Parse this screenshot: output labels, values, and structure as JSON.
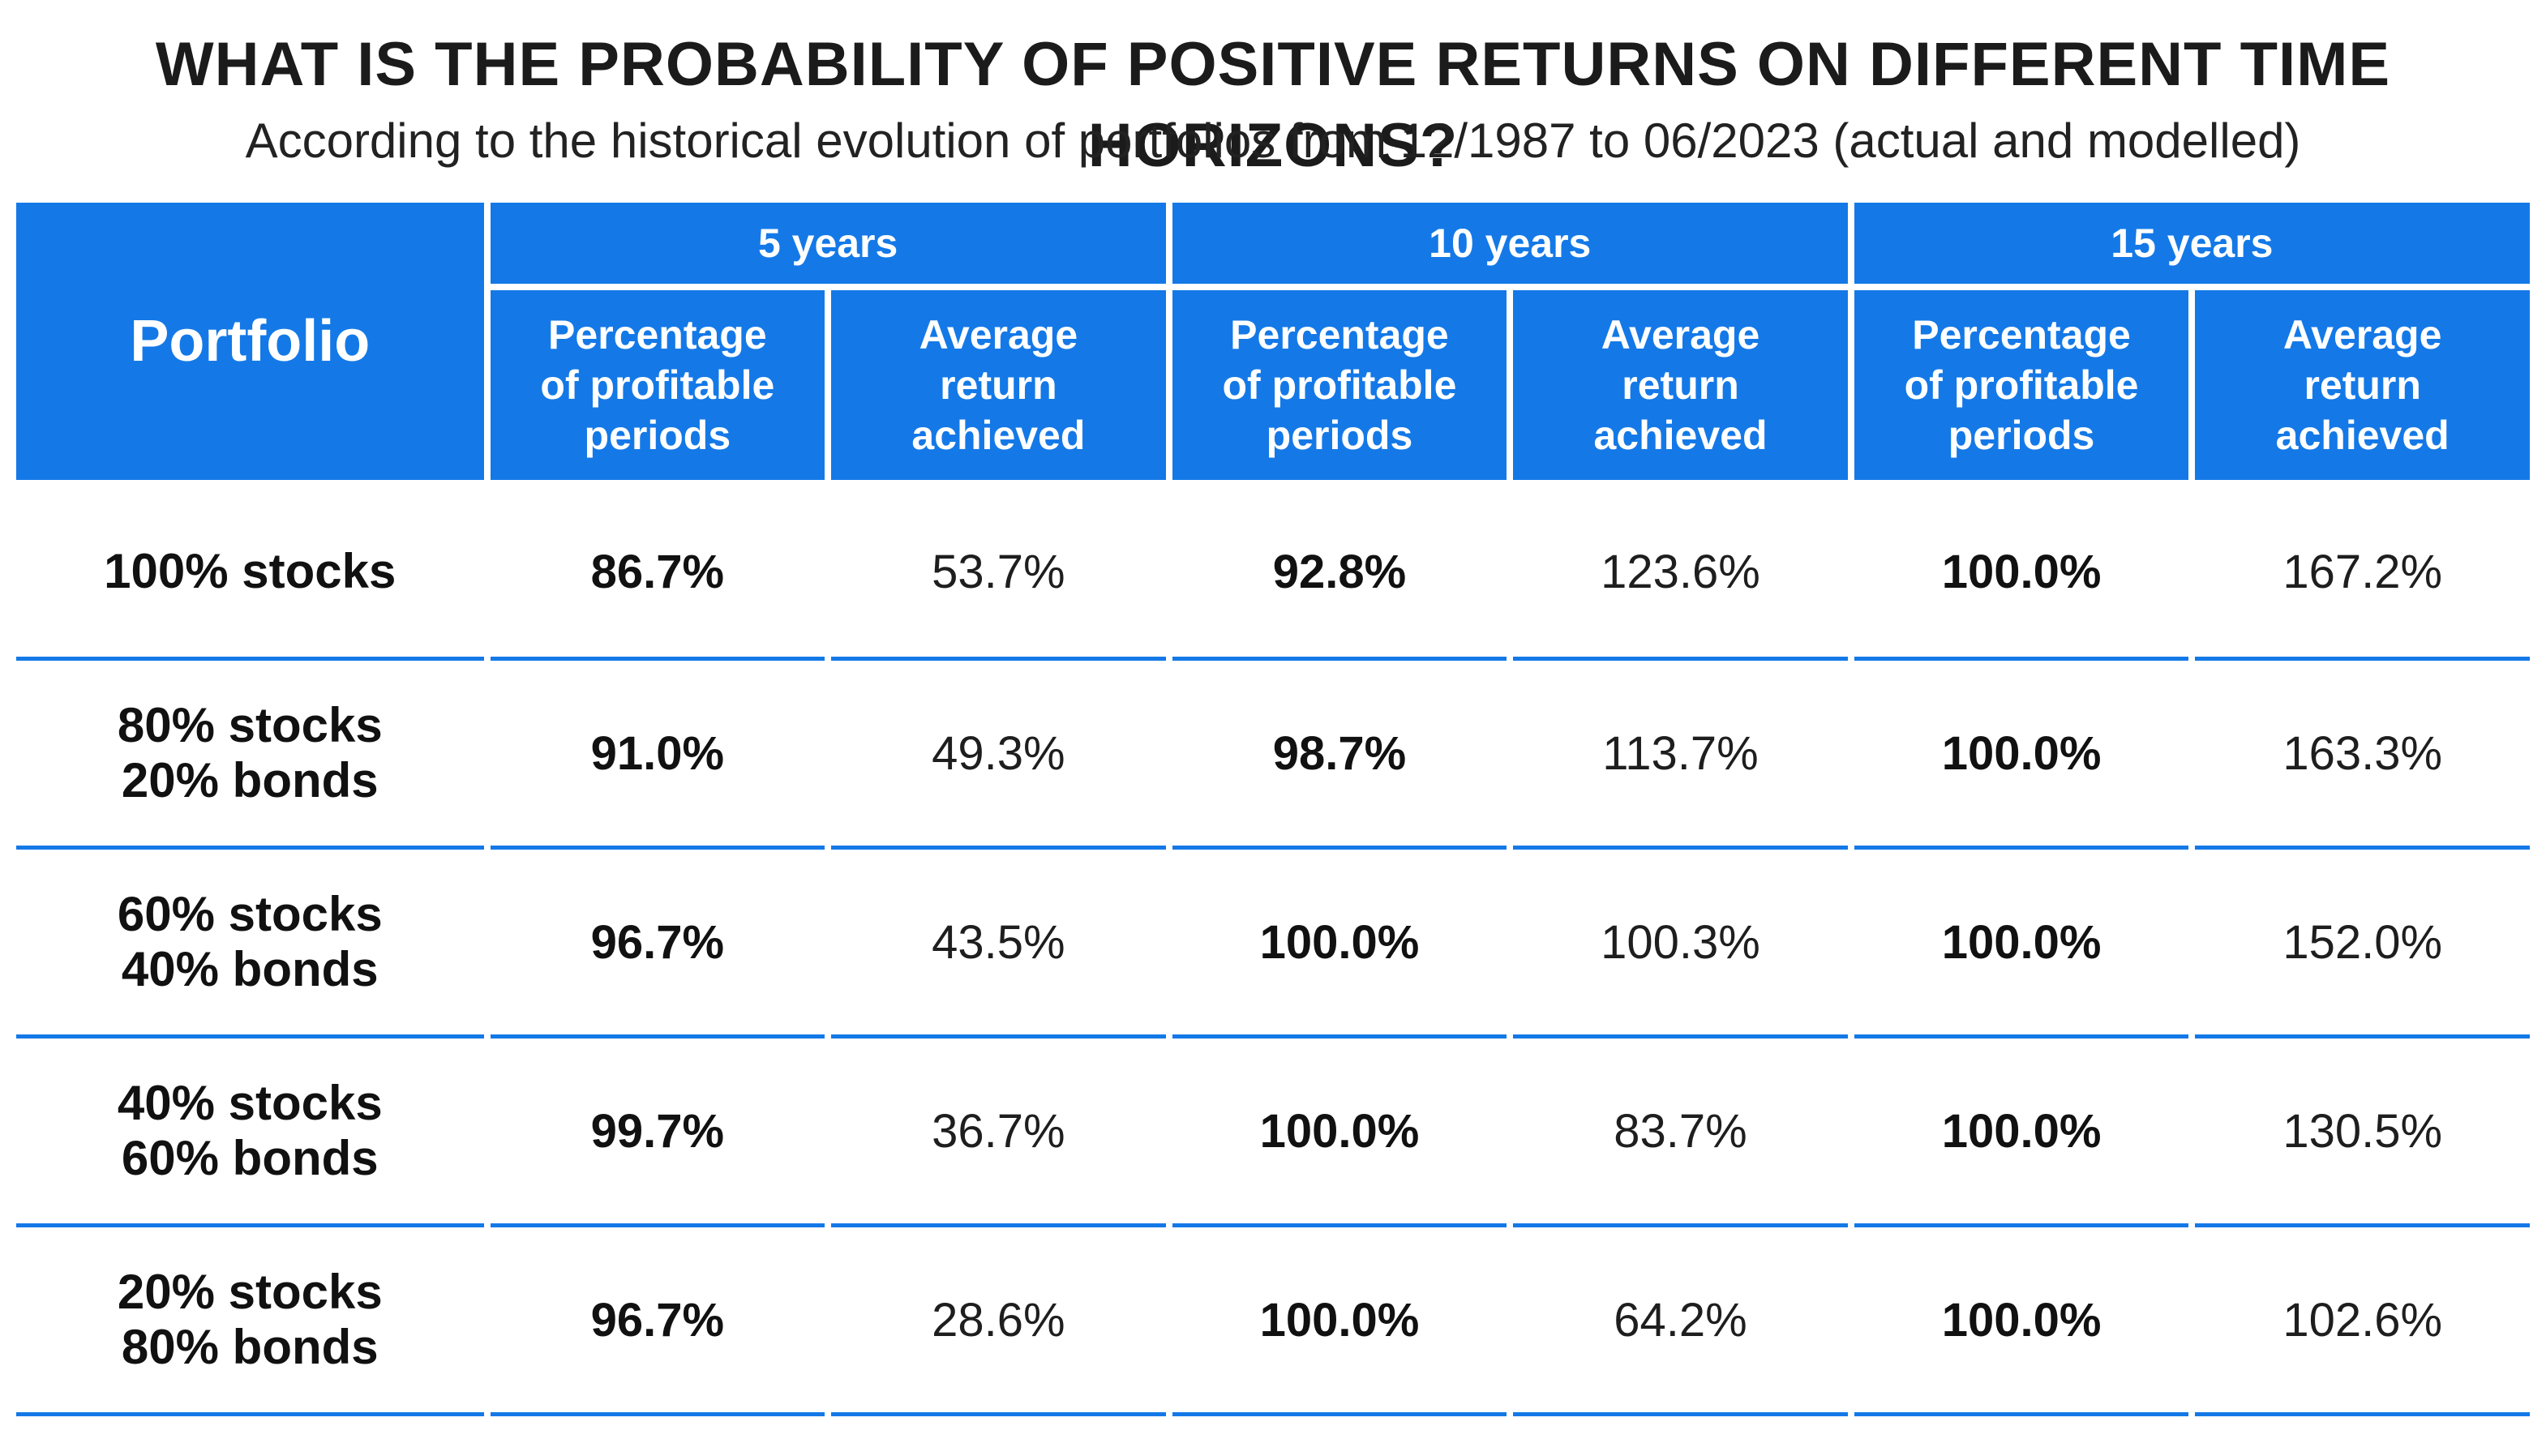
{
  "title": "WHAT IS THE PROBABILITY OF POSITIVE RETURNS ON DIFFERENT TIME HORIZONS?",
  "subtitle": "According to the historical evolution of portfolios from 12/1987 to 06/2023 (actual and modelled)",
  "colors": {
    "header_bg": "#1479e7",
    "header_text": "#ffffff",
    "row_divider": "#1479e7"
  },
  "chart_data": {
    "type": "table",
    "header": {
      "portfolio": "Portfolio",
      "horizons": [
        "5 years",
        "10 years",
        "15 years"
      ],
      "pct_label": [
        "Percentage",
        "of profitable",
        "periods"
      ],
      "avg_label": [
        "Average",
        "return",
        "achieved"
      ]
    },
    "rows": [
      {
        "portfolio": [
          "100% stocks"
        ],
        "values": [
          "86.7%",
          "53.7%",
          "92.8%",
          "123.6%",
          "100.0%",
          "167.2%"
        ]
      },
      {
        "portfolio": [
          "80% stocks",
          "20% bonds"
        ],
        "values": [
          "91.0%",
          "49.3%",
          "98.7%",
          "113.7%",
          "100.0%",
          "163.3%"
        ]
      },
      {
        "portfolio": [
          "60% stocks",
          "40% bonds"
        ],
        "values": [
          "96.7%",
          "43.5%",
          "100.0%",
          "100.3%",
          "100.0%",
          "152.0%"
        ]
      },
      {
        "portfolio": [
          "40% stocks",
          "60% bonds"
        ],
        "values": [
          "99.7%",
          "36.7%",
          "100.0%",
          "83.7%",
          "100.0%",
          "130.5%"
        ]
      },
      {
        "portfolio": [
          "20% stocks",
          "80% bonds"
        ],
        "values": [
          "96.7%",
          "28.6%",
          "100.0%",
          "64.2%",
          "100.0%",
          "102.6%"
        ]
      }
    ]
  }
}
